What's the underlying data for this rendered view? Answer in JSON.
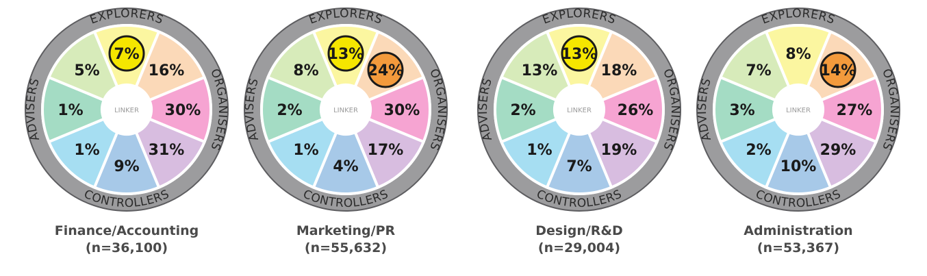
{
  "chart_data": {
    "type": "wheel",
    "ring_labels": {
      "top": "EXPLORERS",
      "right": "ORGANISERS",
      "bottom": "CONTROLLERS",
      "left": "ADVISERS"
    },
    "center_label": "LINKER",
    "segment_colors": [
      "#fbf6a0",
      "#fbd9b8",
      "#f6a4d2",
      "#d8bde0",
      "#a7c9e8",
      "#a6def2",
      "#a4dcc4",
      "#d7ebba"
    ],
    "highlight_colors": {
      "yellow": "#f5e600",
      "orange": "#f39a3c"
    },
    "wheels": [
      {
        "title": "Finance/Accounting",
        "n": "(n=36,100)",
        "values": [
          "7%",
          "16%",
          "30%",
          "31%",
          "9%",
          "1%",
          "1%",
          "5%"
        ],
        "highlights": [
          {
            "segment": 0,
            "color": "yellow"
          }
        ]
      },
      {
        "title": "Marketing/PR",
        "n": "(n=55,632)",
        "values": [
          "13%",
          "24%",
          "30%",
          "17%",
          "4%",
          "1%",
          "2%",
          "8%"
        ],
        "highlights": [
          {
            "segment": 0,
            "color": "yellow"
          },
          {
            "segment": 1,
            "color": "orange"
          }
        ]
      },
      {
        "title": "Design/R&D",
        "n": "(n=29,004)",
        "values": [
          "13%",
          "18%",
          "26%",
          "19%",
          "7%",
          "1%",
          "2%",
          "13%"
        ],
        "highlights": [
          {
            "segment": 0,
            "color": "yellow"
          }
        ]
      },
      {
        "title": "Administration",
        "n": "(n=53,367)",
        "values": [
          "8%",
          "14%",
          "27%",
          "29%",
          "10%",
          "2%",
          "3%",
          "7%"
        ],
        "highlights": [
          {
            "segment": 1,
            "color": "orange"
          }
        ]
      }
    ]
  }
}
